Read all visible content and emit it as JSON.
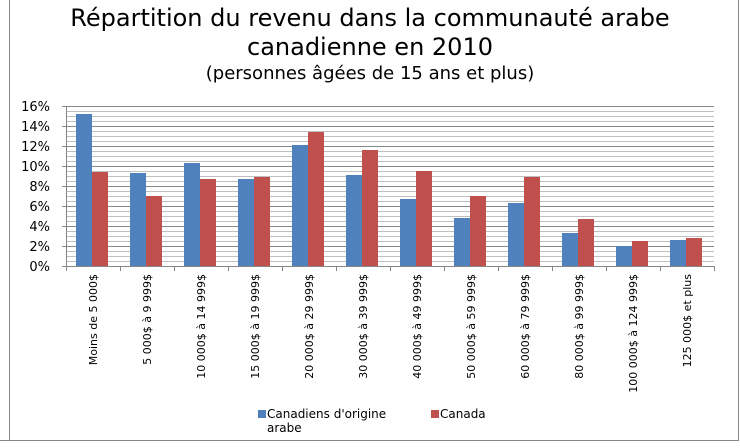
{
  "chart_data": {
    "type": "bar",
    "title": "Répartition du revenu dans la communauté arabe",
    "title_line2": "canadienne en 2010",
    "subtitle": "(personnes âgées de 15 ans et plus)",
    "xlabel": "",
    "ylabel": "",
    "ylim": [
      0,
      16
    ],
    "yticks": [
      "0%",
      "2%",
      "4%",
      "6%",
      "8%",
      "10%",
      "12%",
      "14%",
      "16%"
    ],
    "grid": true,
    "legend_position": "bottom",
    "categories": [
      "Moins de 5 000$",
      "5 000$ à 9 999$",
      "10 000$ à 14 999$",
      "15 000$ à 19 999$",
      "20 000$ à 29 999$",
      "30 000$ à 39 999$",
      "40 000$ à 49 999$",
      "50 000$ à 59 999$",
      "60 000$ à 79 999$",
      "80 000$ à 99 999$",
      "100 000$ à 124 999$",
      "125 000$ et plus"
    ],
    "series": [
      {
        "name": "Canadiens d'origine arabe",
        "legend_line1": "Canadiens d'origine",
        "legend_line2": "arabe",
        "color": "#4F81BD",
        "values": [
          15.2,
          9.3,
          10.3,
          8.7,
          12.1,
          9.1,
          6.7,
          4.8,
          6.3,
          3.3,
          2.0,
          2.6
        ]
      },
      {
        "name": "Canada",
        "legend_line1": "Canada",
        "color": "#C0504D",
        "values": [
          9.4,
          7.0,
          8.7,
          8.9,
          13.4,
          11.6,
          9.5,
          7.0,
          8.9,
          4.7,
          2.5,
          2.8
        ]
      }
    ]
  }
}
